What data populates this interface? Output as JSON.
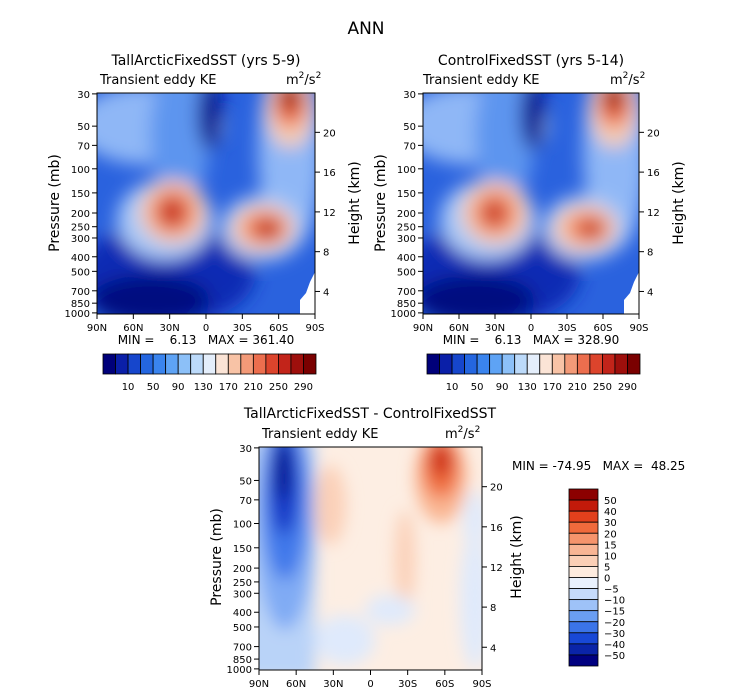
{
  "title": "ANN",
  "field_label": "Transient eddy KE",
  "units": {
    "base": "m",
    "sup1": "2",
    "mid": "/s",
    "sup2": "2"
  },
  "axis_labels": {
    "y_left": "Pressure (mb)",
    "y_right": "Height (km)"
  },
  "pressure_ticks": [
    "30",
    "50",
    "70",
    "100",
    "150",
    "200",
    "250",
    "300",
    "400",
    "500",
    "700",
    "850",
    "1000"
  ],
  "height_ticks": [
    "20",
    "16",
    "12",
    "8",
    "4"
  ],
  "lat_ticks": [
    "90N",
    "60N",
    "30N",
    "0",
    "30S",
    "60S",
    "90S"
  ],
  "panel_a": {
    "title": "TallArcticFixedSST (yrs 5-9)",
    "minmax": "MIN =    6.13   MAX = 361.40"
  },
  "panel_b": {
    "title": "ControlFixedSST (yrs 5-14)",
    "minmax": "MIN =    6.13   MAX = 328.90"
  },
  "panel_c": {
    "title": "TallArcticFixedSST - ControlFixedSST",
    "minmax": "MIN = -74.95   MAX =  48.25"
  },
  "colorbar_top": {
    "labels": [
      "10",
      "50",
      "90",
      "130",
      "170",
      "210",
      "250",
      "290"
    ],
    "colors": [
      "#00007a",
      "#0a1fa8",
      "#1646cc",
      "#2466e0",
      "#3a84ee",
      "#5ea3f5",
      "#8cc0f8",
      "#bcdafa",
      "#e4eefb",
      "#fbe4d6",
      "#f8c3a6",
      "#f39a78",
      "#ec6e4e",
      "#dc442c",
      "#c2241a",
      "#9e0f0c",
      "#7a0000"
    ]
  },
  "colorbar_diff": {
    "labels": [
      "50",
      "40",
      "30",
      "20",
      "15",
      "10",
      "5",
      "0",
      "−5",
      "−10",
      "−15",
      "−20",
      "−30",
      "−40",
      "−50"
    ],
    "colors": [
      "#8c0000",
      "#c21a0a",
      "#e2401c",
      "#f06a3c",
      "#f6946c",
      "#f9b594",
      "#fbcfb6",
      "#fdebdf",
      "#e9f1fd",
      "#c6dbfb",
      "#9ec2f8",
      "#6a9ef2",
      "#3b74e8",
      "#1848d6",
      "#0a24a8",
      "#000080"
    ]
  },
  "chart_data": [
    {
      "type": "heatmap",
      "title": "TallArcticFixedSST (yrs 5-9)",
      "field": "Transient eddy KE",
      "units": "m2/s2",
      "x": [
        "90N",
        "60N",
        "30N",
        "0",
        "30S",
        "60S",
        "90S"
      ],
      "y": [
        30,
        50,
        70,
        100,
        150,
        200,
        250,
        300,
        400,
        500,
        700,
        850,
        1000
      ],
      "xlabel": "",
      "ylabel": "Pressure (mb)",
      "ylabel_right": "Height (km)",
      "min": 6.13,
      "max": 361.4,
      "features": [
        {
          "lat": 28,
          "pressure": 210,
          "value": 290
        },
        {
          "lat": -50,
          "pressure": 260,
          "value": 300
        },
        {
          "lat": -68,
          "pressure": 30,
          "value": 361
        }
      ]
    },
    {
      "type": "heatmap",
      "title": "ControlFixedSST (yrs 5-14)",
      "field": "Transient eddy KE",
      "units": "m2/s2",
      "x": [
        "90N",
        "60N",
        "30N",
        "0",
        "30S",
        "60S",
        "90S"
      ],
      "y": [
        30,
        50,
        70,
        100,
        150,
        200,
        250,
        300,
        400,
        500,
        700,
        850,
        1000
      ],
      "xlabel": "",
      "ylabel": "Pressure (mb)",
      "ylabel_right": "Height (km)",
      "min": 6.13,
      "max": 328.9,
      "features": [
        {
          "lat": 28,
          "pressure": 210,
          "value": 270
        },
        {
          "lat": -52,
          "pressure": 255,
          "value": 290
        },
        {
          "lat": -68,
          "pressure": 30,
          "value": 328
        }
      ]
    },
    {
      "type": "heatmap",
      "title": "TallArcticFixedSST - ControlFixedSST",
      "field": "Transient eddy KE",
      "units": "m2/s2",
      "x": [
        "90N",
        "60N",
        "30N",
        "0",
        "30S",
        "60S",
        "90S"
      ],
      "y": [
        30,
        50,
        70,
        100,
        150,
        200,
        250,
        300,
        400,
        500,
        700,
        850,
        1000
      ],
      "xlabel": "",
      "ylabel": "Pressure (mb)",
      "ylabel_right": "Height (km)",
      "min": -74.95,
      "max": 48.25,
      "features": [
        {
          "lat": 70,
          "pressure": 50,
          "value": -60
        },
        {
          "lat": -58,
          "pressure": 40,
          "value": 45
        },
        {
          "lat": 25,
          "pressure": 90,
          "value": 8
        },
        {
          "lat": -25,
          "pressure": 200,
          "value": 6
        }
      ]
    }
  ]
}
